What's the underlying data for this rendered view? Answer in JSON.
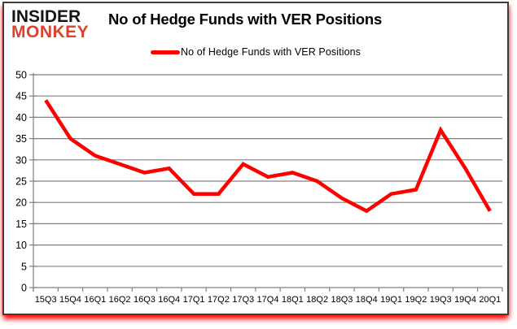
{
  "logo": {
    "line1": "INSIDER",
    "line2": "MONKEY"
  },
  "title": "No of Hedge Funds with VER Positions",
  "legend": {
    "label": "No of Hedge Funds with VER Positions",
    "marker_color": "#ff0000"
  },
  "chart_data": {
    "type": "line",
    "title": "No of Hedge Funds with VER Positions",
    "categories": [
      "15Q3",
      "15Q4",
      "16Q1",
      "16Q2",
      "16Q3",
      "16Q4",
      "17Q1",
      "17Q2",
      "17Q3",
      "17Q4",
      "18Q1",
      "18Q2",
      "18Q3",
      "18Q4",
      "19Q1",
      "19Q2",
      "19Q3",
      "19Q4",
      "20Q1"
    ],
    "series": [
      {
        "name": "No of Hedge Funds with VER Positions",
        "color": "#ff0000",
        "values": [
          44,
          35,
          31,
          29,
          27,
          28,
          22,
          22,
          29,
          26,
          27,
          25,
          21,
          18,
          22,
          23,
          37,
          28,
          18
        ]
      }
    ],
    "xlabel": "",
    "ylabel": "",
    "ylim": [
      0,
      50
    ],
    "ytick_step": 5,
    "grid": true,
    "legend_position": "top",
    "gridline_color": "#808080",
    "axis_color": "#808080",
    "tick_label_color": "#000000"
  },
  "colors": {
    "logo_black": "#151515",
    "logo_red": "#d8432c",
    "line_red": "#ff0000",
    "card_border": "#3d3d3d",
    "shadow_red": "#ff0000"
  }
}
